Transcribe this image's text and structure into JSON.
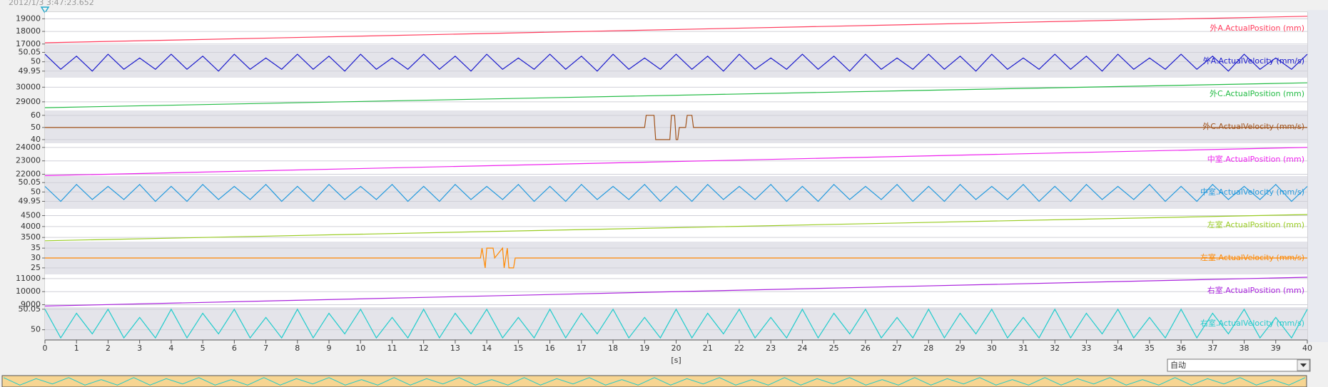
{
  "timestamp": "2012/1/3 3:47:23.652",
  "x_axis": {
    "xlim": [
      0,
      40
    ],
    "xticks": [
      0,
      1,
      2,
      3,
      4,
      5,
      6,
      7,
      8,
      9,
      10,
      11,
      12,
      13,
      14,
      15,
      16,
      17,
      18,
      19,
      20,
      21,
      22,
      23,
      24,
      25,
      26,
      27,
      28,
      29,
      30,
      31,
      32,
      33,
      34,
      35,
      36,
      37,
      38,
      39,
      40
    ],
    "xlabel": "[s]"
  },
  "zoom_select": "自动",
  "chart_data": [
    {
      "type": "line",
      "name": "外A.ActualPosition (mm)",
      "color": "#ff3b5c",
      "ylim": [
        16930,
        19530
      ],
      "yticks": [
        17000,
        18000,
        19000
      ],
      "x": [
        0,
        40
      ],
      "values": [
        17100,
        19200
      ]
    },
    {
      "type": "line",
      "name": "外A.ActualVelocity (mm/s)",
      "color": "#1a1acc",
      "ylim": [
        49.915,
        50.09
      ],
      "yticks": [
        49.95,
        50,
        50.05
      ],
      "x": [
        0,
        0.5,
        1,
        1.5,
        2,
        2.5,
        3,
        3.5,
        4,
        4.5,
        5,
        5.5,
        6,
        6.5,
        7,
        7.5,
        8,
        8.5,
        9,
        9.5,
        10,
        10.5,
        11,
        11.5,
        12,
        12.5,
        13,
        13.5,
        14,
        14.5,
        15,
        15.5,
        16,
        16.5,
        17,
        17.5,
        18,
        18.5,
        19,
        19.5,
        20,
        20.5,
        21,
        21.5,
        22,
        22.5,
        23,
        23.5,
        24,
        24.5,
        25,
        25.5,
        26,
        26.5,
        27,
        27.5,
        28,
        28.5,
        29,
        29.5,
        30,
        30.5,
        31,
        31.5,
        32,
        32.5,
        33,
        33.5,
        34,
        34.5,
        35,
        35.5,
        36,
        36.5,
        37,
        37.5,
        38,
        38.5,
        39,
        39.5,
        40
      ],
      "values": [
        50.04,
        49.96,
        50.03,
        49.95,
        50.04,
        49.96,
        50.02,
        49.96,
        50.04,
        49.96,
        50.03,
        49.95,
        50.04,
        49.96,
        50.02,
        49.96,
        50.04,
        49.96,
        50.03,
        49.95,
        50.04,
        49.96,
        50.02,
        49.96,
        50.04,
        49.96,
        50.03,
        49.95,
        50.04,
        49.96,
        50.02,
        49.96,
        50.04,
        49.96,
        50.03,
        49.95,
        50.04,
        49.96,
        50.02,
        49.96,
        50.04,
        49.96,
        50.03,
        49.95,
        50.04,
        49.96,
        50.02,
        49.96,
        50.04,
        49.96,
        50.03,
        49.95,
        50.04,
        49.96,
        50.02,
        49.96,
        50.04,
        49.96,
        50.03,
        49.95,
        50.04,
        49.96,
        50.02,
        49.96,
        50.04,
        49.96,
        50.03,
        49.95,
        50.04,
        49.96,
        50.02,
        49.96,
        50.04,
        49.96,
        50.03,
        49.95,
        50.04,
        49.96,
        50.02,
        49.96,
        50.04
      ]
    },
    {
      "type": "line",
      "name": "外C.ActualPosition (mm)",
      "color": "#22bb44",
      "ylim": [
        28410,
        30650
      ],
      "yticks": [
        29000,
        30000
      ],
      "x": [
        0,
        40
      ],
      "values": [
        28600,
        30300
      ]
    },
    {
      "type": "line",
      "name": "外C.ActualVelocity (mm/s)",
      "color": "#a0521a",
      "ylim": [
        37,
        64
      ],
      "yticks": [
        40,
        50,
        60
      ],
      "x": [
        0,
        19.0,
        19.05,
        19.3,
        19.35,
        19.8,
        19.85,
        19.95,
        20.0,
        20.05,
        20.1,
        20.3,
        20.35,
        20.5,
        20.55,
        40
      ],
      "values": [
        50,
        50,
        60,
        60,
        40,
        40,
        60,
        60,
        40,
        40,
        50,
        50,
        60,
        60,
        50,
        50
      ]
    },
    {
      "type": "line",
      "name": "中室.ActualPosition (mm)",
      "color": "#ee22ee",
      "ylim": [
        21870,
        24310
      ],
      "yticks": [
        22000,
        23000,
        24000
      ],
      "x": [
        0,
        40
      ],
      "values": [
        21900,
        24000
      ]
    },
    {
      "type": "line",
      "name": "中室.ActualVelocity (mm/s)",
      "color": "#2299dd",
      "ylim": [
        49.91,
        50.085
      ],
      "yticks": [
        49.95,
        50,
        50.05
      ],
      "x": [
        0,
        0.5,
        1,
        1.5,
        2,
        2.5,
        3,
        3.5,
        4,
        4.5,
        5,
        5.5,
        6,
        6.5,
        7,
        7.5,
        8,
        8.5,
        9,
        9.5,
        10,
        10.5,
        11,
        11.5,
        12,
        12.5,
        13,
        13.5,
        14,
        14.5,
        15,
        15.5,
        16,
        16.5,
        17,
        17.5,
        18,
        18.5,
        19,
        19.5,
        20,
        20.5,
        21,
        21.5,
        22,
        22.5,
        23,
        23.5,
        24,
        24.5,
        25,
        25.5,
        26,
        26.5,
        27,
        27.5,
        28,
        28.5,
        29,
        29.5,
        30,
        30.5,
        31,
        31.5,
        32,
        32.5,
        33,
        33.5,
        34,
        34.5,
        35,
        35.5,
        36,
        36.5,
        37,
        37.5,
        38,
        38.5,
        39,
        39.5,
        40
      ],
      "values": [
        50.03,
        49.95,
        50.04,
        49.96,
        50.03,
        49.96,
        50.04,
        49.95,
        50.03,
        49.95,
        50.04,
        49.96,
        50.03,
        49.96,
        50.04,
        49.95,
        50.03,
        49.95,
        50.04,
        49.96,
        50.03,
        49.96,
        50.04,
        49.95,
        50.03,
        49.95,
        50.04,
        49.96,
        50.03,
        49.96,
        50.04,
        49.95,
        50.03,
        49.95,
        50.04,
        49.96,
        50.03,
        49.96,
        50.04,
        49.95,
        50.03,
        49.95,
        50.04,
        49.96,
        50.03,
        49.96,
        50.04,
        49.95,
        50.03,
        49.95,
        50.04,
        49.96,
        50.03,
        49.96,
        50.04,
        49.95,
        50.03,
        49.95,
        50.04,
        49.96,
        50.03,
        49.96,
        50.04,
        49.95,
        50.03,
        49.95,
        50.04,
        49.96,
        50.03,
        49.96,
        50.04,
        49.95,
        50.03,
        49.95,
        50.04,
        49.96,
        50.03,
        49.96,
        50.04,
        49.95,
        50.03
      ]
    },
    {
      "type": "line",
      "name": "左室.ActualPosition (mm)",
      "color": "#99cc22",
      "ylim": [
        3310,
        4810
      ],
      "yticks": [
        3500,
        4000,
        4500
      ],
      "x": [
        0,
        40
      ],
      "values": [
        3350,
        4550
      ]
    },
    {
      "type": "line",
      "name": "左室.ActualVelocity (mm/s)",
      "color": "#ff8800",
      "ylim": [
        21.7,
        38.3
      ],
      "yticks": [
        25,
        30,
        35
      ],
      "x": [
        0,
        13.8,
        13.85,
        13.95,
        14.0,
        14.2,
        14.25,
        14.5,
        14.55,
        14.65,
        14.7,
        14.85,
        14.9,
        40
      ],
      "values": [
        30,
        30,
        35,
        25,
        35,
        35,
        30,
        35,
        25,
        35,
        25,
        25,
        30,
        30
      ]
    },
    {
      "type": "line",
      "name": "右室.ActualPosition (mm)",
      "color": "#aa22dd",
      "ylim": [
        8810,
        11320
      ],
      "yticks": [
        9000,
        10000,
        11000
      ],
      "x": [
        0,
        40
      ],
      "values": [
        8900,
        11100
      ]
    },
    {
      "type": "line",
      "name": "右室.ActualVelocity (mm/s)",
      "color": "#22cccc",
      "ylim": [
        49.975,
        50.055
      ],
      "yticks": [
        50,
        50.05
      ],
      "x": [
        0,
        0.5,
        1,
        1.5,
        2,
        2.5,
        3,
        3.5,
        4,
        4.5,
        5,
        5.5,
        6,
        6.5,
        7,
        7.5,
        8,
        8.5,
        9,
        9.5,
        10,
        10.5,
        11,
        11.5,
        12,
        12.5,
        13,
        13.5,
        14,
        14.5,
        15,
        15.5,
        16,
        16.5,
        17,
        17.5,
        18,
        18.5,
        19,
        19.5,
        20,
        20.5,
        21,
        21.5,
        22,
        22.5,
        23,
        23.5,
        24,
        24.5,
        25,
        25.5,
        26,
        26.5,
        27,
        27.5,
        28,
        28.5,
        29,
        29.5,
        30,
        30.5,
        31,
        31.5,
        32,
        32.5,
        33,
        33.5,
        34,
        34.5,
        35,
        35.5,
        36,
        36.5,
        37,
        37.5,
        38,
        38.5,
        39,
        39.5,
        40
      ],
      "values": [
        50.05,
        49.98,
        50.04,
        49.99,
        50.05,
        49.98,
        50.03,
        49.98,
        50.05,
        49.98,
        50.04,
        49.99,
        50.05,
        49.98,
        50.03,
        49.98,
        50.05,
        49.98,
        50.04,
        49.99,
        50.05,
        49.98,
        50.03,
        49.98,
        50.05,
        49.98,
        50.04,
        49.99,
        50.05,
        49.98,
        50.03,
        49.98,
        50.05,
        49.98,
        50.04,
        49.99,
        50.05,
        49.98,
        50.03,
        49.98,
        50.05,
        49.98,
        50.04,
        49.99,
        50.05,
        49.98,
        50.03,
        49.98,
        50.05,
        49.98,
        50.04,
        49.99,
        50.05,
        49.98,
        50.03,
        49.98,
        50.05,
        49.98,
        50.04,
        49.99,
        50.05,
        49.98,
        50.03,
        49.98,
        50.05,
        49.98,
        50.04,
        49.99,
        50.05,
        49.98,
        50.03,
        49.98,
        50.05,
        49.98,
        50.04,
        49.99,
        50.05,
        49.98,
        50.03,
        49.98,
        50.05
      ]
    }
  ]
}
